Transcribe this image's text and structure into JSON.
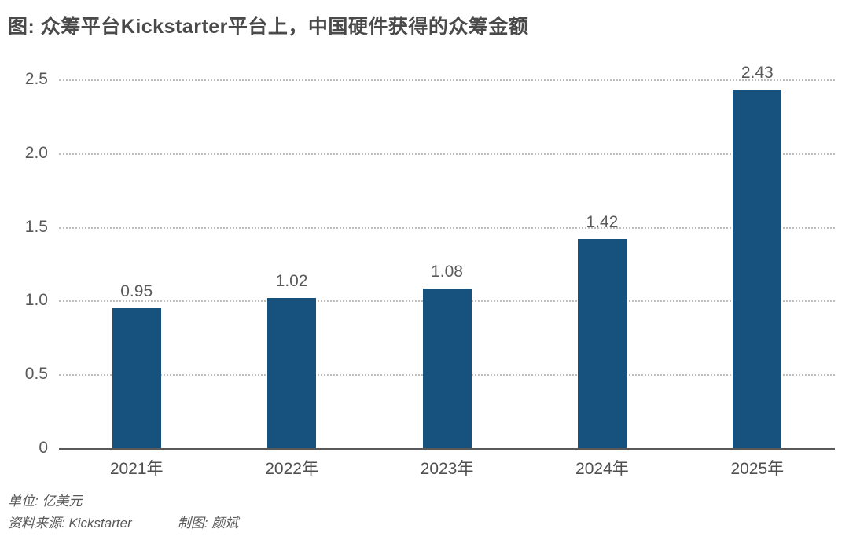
{
  "title": "图: 众筹平台Kickstarter平台上，中国硬件获得的众筹金额",
  "footer": {
    "unit": "单位: 亿美元",
    "source": "资料来源: Kickstarter",
    "credit": "制图: 颜斌"
  },
  "colors": {
    "bar": "#17517e",
    "title_text": "#4a4a4a",
    "label_text": "#595959",
    "gridline": "#bdbdbd",
    "baseline": "#595959",
    "background": "#ffffff"
  },
  "chart_data": {
    "type": "bar",
    "title": "图: 众筹平台Kickstarter平台上，中国硬件获得的众筹金额",
    "categories": [
      "2021年",
      "2022年",
      "2023年",
      "2024年",
      "2025年"
    ],
    "values": [
      0.95,
      1.02,
      1.08,
      1.42,
      2.43
    ],
    "value_labels": [
      "0.95",
      "1.02",
      "1.08",
      "1.42",
      "2.43"
    ],
    "unit": "亿美元",
    "xlabel": "",
    "ylabel": "",
    "ylim": [
      0,
      2.5
    ],
    "yticks": [
      0,
      0.5,
      1.0,
      1.5,
      2.0,
      2.5
    ],
    "ytick_labels": [
      "0",
      "0.5",
      "1.0",
      "1.5",
      "2.0",
      "2.5"
    ],
    "grid": "horizontal-dotted",
    "legend": "none",
    "bar_color": "#17517e"
  }
}
